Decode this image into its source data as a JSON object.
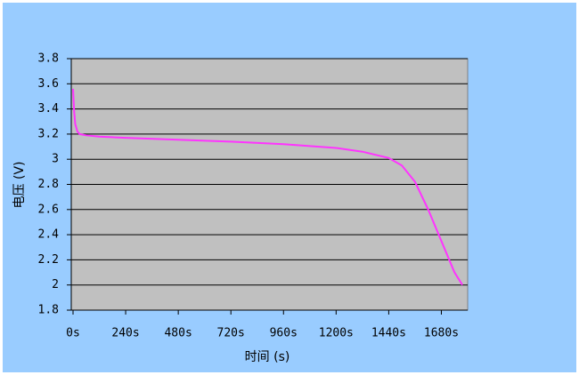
{
  "chart_data": {
    "type": "line",
    "x_label": "时间 (s)",
    "y_label": "电压 (V)",
    "x": [
      0,
      5,
      10,
      20,
      30,
      60,
      120,
      240,
      480,
      720,
      960,
      1200,
      1320,
      1440,
      1500,
      1560,
      1620,
      1680,
      1740,
      1776
    ],
    "series": [
      {
        "name": "voltage",
        "color": "#ff33ff",
        "values": [
          3.56,
          3.38,
          3.28,
          3.22,
          3.2,
          3.19,
          3.18,
          3.17,
          3.155,
          3.14,
          3.12,
          3.09,
          3.06,
          3.01,
          2.95,
          2.82,
          2.6,
          2.35,
          2.1,
          2.0
        ]
      }
    ],
    "xlim": [
      0,
      1800
    ],
    "xticks": [
      {
        "value": 0,
        "label": "0s"
      },
      {
        "value": 240,
        "label": "240s"
      },
      {
        "value": 480,
        "label": "480s"
      },
      {
        "value": 720,
        "label": "720s"
      },
      {
        "value": 960,
        "label": "960s"
      },
      {
        "value": 1200,
        "label": "1200s"
      },
      {
        "value": 1440,
        "label": "1440s"
      },
      {
        "value": 1680,
        "label": "1680s"
      }
    ],
    "ylim": [
      1.8,
      3.8
    ],
    "yticks": [
      1.8,
      2,
      2.2,
      2.4,
      2.6,
      2.8,
      3,
      3.2,
      3.4,
      3.6,
      3.8
    ],
    "grid": true,
    "plot_background": "#c0c0c0",
    "background": "#99ccff"
  }
}
